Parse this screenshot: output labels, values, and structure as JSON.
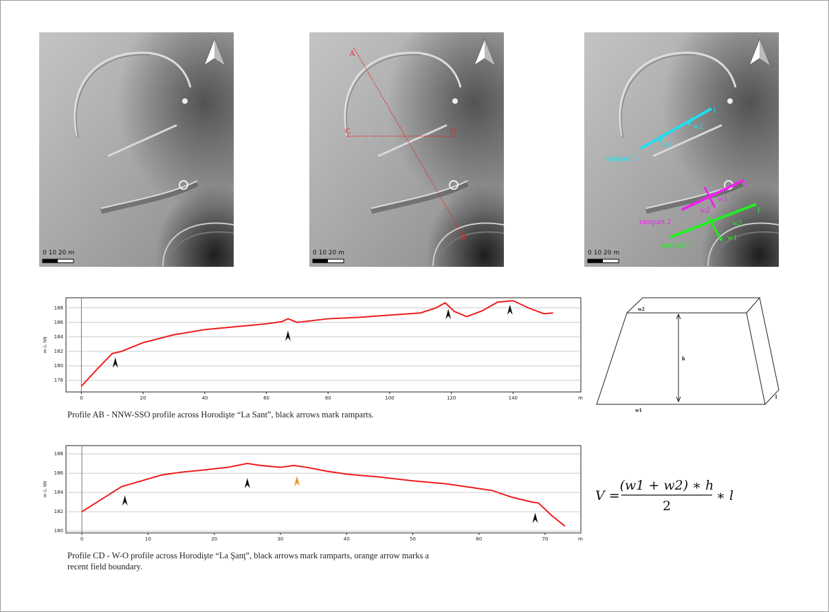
{
  "maps": [
    {
      "scale": "0   10   20 m"
    },
    {
      "scale": "0   10   20 m",
      "labels": [
        "A",
        "B",
        "C",
        "D"
      ]
    },
    {
      "scale": "0   10   20 m",
      "labels": [
        "rampart 3",
        "w1",
        "w2",
        "l",
        "rampart 2",
        "w2",
        "w1",
        "l",
        "rampart 1",
        "w2",
        "w1",
        "l"
      ]
    }
  ],
  "chart_data": [
    {
      "type": "line",
      "y_label": "m ü. NN",
      "x_unit": "m",
      "x": [
        0,
        5,
        10,
        13,
        20,
        30,
        40,
        50,
        60,
        65,
        67,
        70,
        80,
        90,
        100,
        110,
        115,
        118,
        121,
        125,
        130,
        135,
        140,
        145,
        150,
        153
      ],
      "series": [
        {
          "color": "#ee1c1c",
          "values": [
            177.2,
            179.5,
            181.7,
            182,
            183.2,
            184.3,
            185,
            185.4,
            185.8,
            186.1,
            186.5,
            186,
            186.5,
            186.7,
            187,
            187.3,
            188,
            188.7,
            187.5,
            186.8,
            187.6,
            188.8,
            189,
            188,
            187.2,
            187.3
          ]
        }
      ],
      "xlim": [
        -5,
        162
      ],
      "ylim": [
        176.4,
        189.4
      ],
      "xticks": [
        0,
        20,
        40,
        60,
        80,
        100,
        120,
        140
      ],
      "yticks": [
        178,
        180,
        182,
        184,
        186,
        188
      ],
      "grid": true,
      "arrows": [
        {
          "x": 11,
          "y": 180.5,
          "color": "#111111"
        },
        {
          "x": 67,
          "y": 184.2,
          "color": "#111111"
        },
        {
          "x": 119,
          "y": 187.2,
          "color": "#111111"
        },
        {
          "x": 139,
          "y": 187.8,
          "color": "#111111"
        }
      ],
      "caption": [
        "Profile AB - NNW-SSO profile across Horodişte “La Sant”, black arrows mark ramparts."
      ]
    },
    {
      "type": "line",
      "y_label": "m ü. NN",
      "x_unit": "m",
      "x": [
        0,
        3,
        6,
        9,
        12,
        15,
        18,
        22,
        25,
        27,
        30,
        32,
        34,
        37,
        40,
        45,
        50,
        55,
        60,
        62,
        65,
        68,
        69,
        71,
        73
      ],
      "series": [
        {
          "color": "#ee1c1c",
          "values": [
            182,
            183.3,
            184.6,
            185.2,
            185.8,
            186.1,
            186.3,
            186.6,
            187,
            186.8,
            186.6,
            186.8,
            186.6,
            186.2,
            185.9,
            185.6,
            185.2,
            184.9,
            184.4,
            184.2,
            183.5,
            183,
            182.9,
            181.6,
            180.5
          ]
        }
      ],
      "xlim": [
        -2.4,
        75.4
      ],
      "ylim": [
        179.8,
        188.86
      ],
      "xticks": [
        0,
        10,
        20,
        30,
        40,
        50,
        60,
        70
      ],
      "yticks": [
        180,
        182,
        184,
        186,
        188
      ],
      "grid": true,
      "arrows": [
        {
          "x": 6.5,
          "y": 183.2,
          "color": "#111111"
        },
        {
          "x": 25,
          "y": 185,
          "color": "#111111"
        },
        {
          "x": 32.5,
          "y": 185.2,
          "color": "#e8961e"
        },
        {
          "x": 68.5,
          "y": 181.4,
          "color": "#111111"
        }
      ],
      "caption": [
        "Profile CD - W-O profile across Horodişte “La Şanţ”, black arrows mark ramparts, orange arrow marks a",
        "recent field boundary."
      ]
    }
  ],
  "diagram": {
    "labels": [
      "w2",
      "h",
      "w1",
      "l"
    ]
  },
  "formula": {
    "lhs": "V =",
    "numerator": "(w1 + w2) ∗ h",
    "denominator": "2",
    "tail": "∗ l"
  }
}
